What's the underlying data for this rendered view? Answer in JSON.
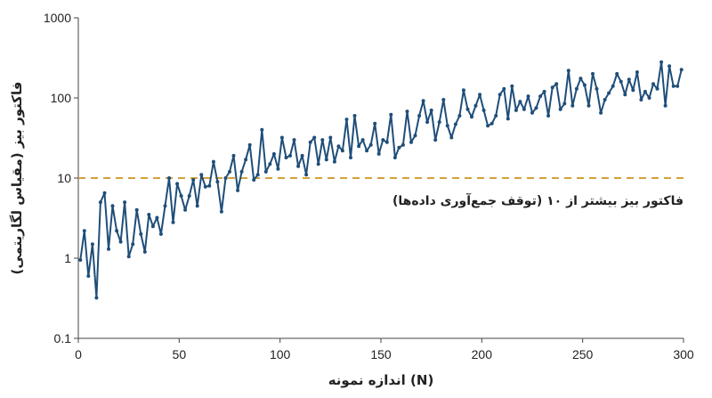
{
  "chart_data": {
    "type": "line",
    "title": "",
    "xlabel": "اندازه نمونه (N)",
    "ylabel": "فاکتور بیز (مقیاس لگاریتمی)",
    "xlim": [
      0,
      300
    ],
    "ylim": [
      0.1,
      1000
    ],
    "y_scale": "log",
    "x_ticks": [
      "0",
      "50",
      "100",
      "150",
      "200",
      "250",
      "300"
    ],
    "y_ticks": [
      "0.1",
      "1",
      "10",
      "100",
      "1000"
    ],
    "grid": false,
    "threshold": {
      "value": 10,
      "label": "فاکتور بیز بیشتر از ۱۰ (توقف جمع‌آوری داده‌ها)",
      "color": "#d4a038"
    },
    "series": [
      {
        "color": "#1f4e79",
        "x": [
          1,
          3,
          5,
          7,
          9,
          11,
          13,
          15,
          17,
          19,
          21,
          23,
          25,
          27,
          29,
          31,
          33,
          35,
          37,
          39,
          41,
          43,
          45,
          47,
          49,
          51,
          53,
          55,
          57,
          59,
          61,
          63,
          65,
          67,
          69,
          71,
          73,
          75,
          77,
          79,
          81,
          83,
          85,
          87,
          89,
          91,
          93,
          95,
          97,
          99,
          101,
          103,
          105,
          107,
          109,
          111,
          113,
          115,
          117,
          119,
          121,
          123,
          125,
          127,
          129,
          131,
          133,
          135,
          137,
          139,
          141,
          143,
          145,
          147,
          149,
          151,
          153,
          155,
          157,
          159,
          161,
          163,
          165,
          167,
          169,
          171,
          173,
          175,
          177,
          179,
          181,
          183,
          185,
          187,
          189,
          191,
          193,
          195,
          197,
          199,
          201,
          203,
          205,
          207,
          209,
          211,
          213,
          215,
          217,
          219,
          221,
          223,
          225,
          227,
          229,
          231,
          233,
          235,
          237,
          239,
          241,
          243,
          245,
          247,
          249,
          251,
          253,
          255,
          257,
          259,
          261,
          263,
          265,
          267,
          269,
          271,
          273,
          275,
          277,
          279,
          281,
          283,
          285,
          287,
          289,
          291,
          293,
          295,
          297,
          299
        ],
        "y": [
          0.95,
          2.2,
          0.6,
          1.5,
          0.32,
          5,
          6.5,
          1.3,
          4.5,
          2.2,
          1.6,
          5,
          1.05,
          1.5,
          4,
          2,
          1.2,
          3.5,
          2.5,
          3.2,
          2.0,
          4.5,
          10,
          2.8,
          8.5,
          6,
          4,
          6,
          9.5,
          4.5,
          11,
          7.8,
          8,
          16,
          9,
          3.8,
          10,
          12,
          19,
          7,
          12,
          17,
          26,
          9.5,
          11,
          40,
          12,
          15,
          20,
          13,
          32,
          18,
          19,
          30,
          14,
          19,
          11,
          28,
          32,
          15,
          30,
          17,
          32,
          16,
          25,
          22,
          54,
          18,
          60,
          25,
          30,
          22,
          26,
          48,
          20,
          30,
          28,
          62,
          18,
          24,
          26,
          68,
          28,
          34,
          60,
          92,
          50,
          70,
          30,
          50,
          95,
          45,
          32,
          47,
          60,
          125,
          72,
          58,
          80,
          110,
          70,
          45,
          48,
          60,
          110,
          130,
          55,
          140,
          70,
          90,
          72,
          105,
          65,
          75,
          105,
          120,
          60,
          135,
          150,
          72,
          85,
          220,
          80,
          130,
          175,
          145,
          80,
          200,
          130,
          65,
          95,
          115,
          140,
          200,
          160,
          110,
          170,
          125,
          210,
          95,
          120,
          100,
          150,
          130,
          280,
          80,
          250,
          140,
          140,
          225
        ]
      }
    ]
  }
}
